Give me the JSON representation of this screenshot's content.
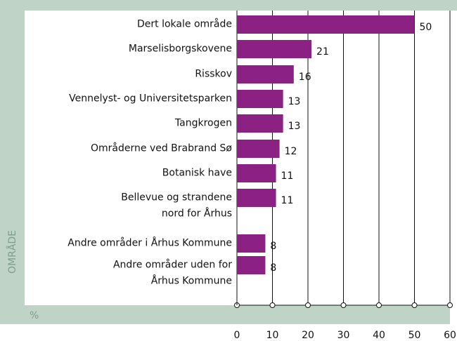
{
  "chart_data": {
    "type": "bar",
    "orientation": "horizontal",
    "categories": [
      "Dert lokale område",
      "Marselisborgskovene",
      "Risskov",
      "Vennelyst- og Universitetsparken",
      "Tangkrogen",
      "Områderne ved Brabrand Sø",
      "Botanisk have",
      "Bellevue og strandene\nnord for Århus",
      "Andre områder i Århus Kommune",
      "Andre områder uden for\nÅrhus Kommune"
    ],
    "values": [
      50,
      21,
      16,
      13,
      13,
      12,
      11,
      11,
      8,
      8
    ],
    "color": "#8c2184",
    "xlim": [
      0,
      60
    ],
    "xticks": [
      0,
      10,
      20,
      30,
      40,
      50,
      60
    ],
    "ylabel": "OMRÅDE",
    "xlabel": "%",
    "grid": true
  }
}
